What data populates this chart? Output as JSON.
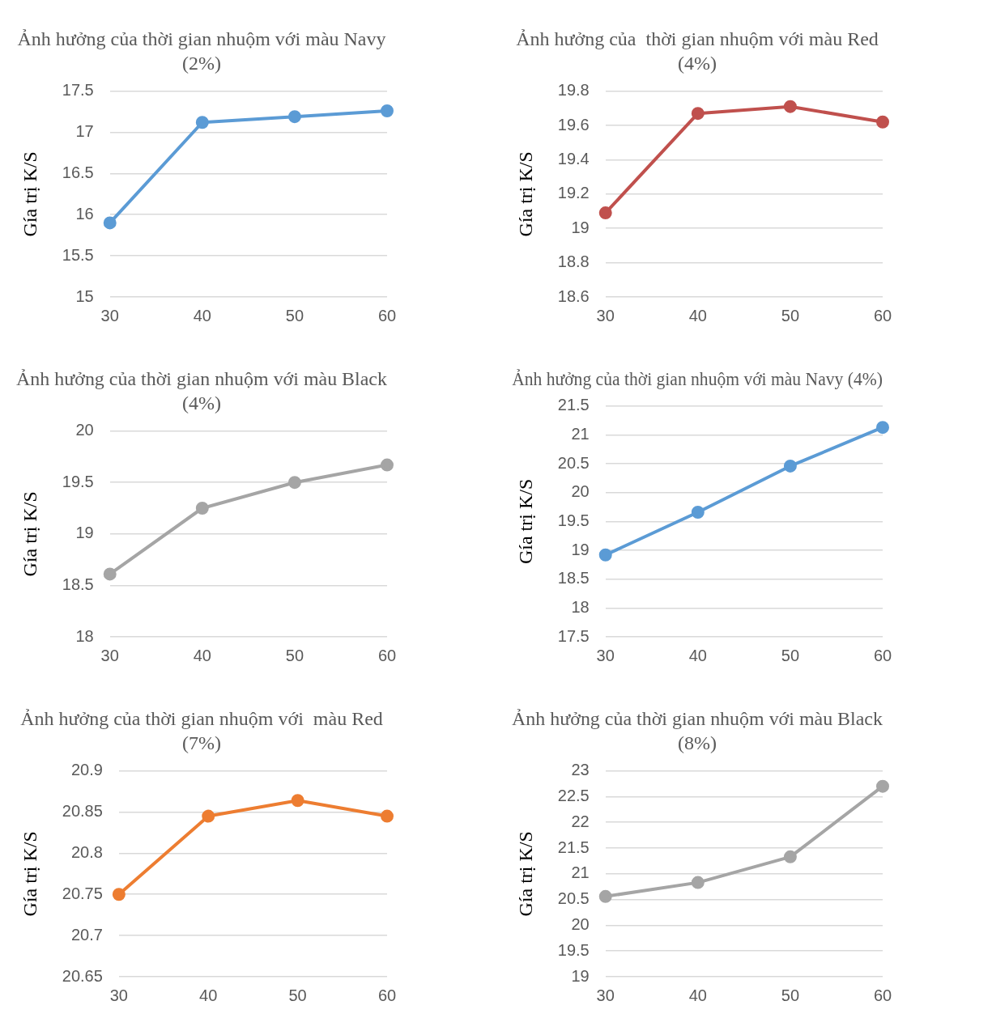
{
  "chart_data": [
    {
      "type": "line",
      "title": "Ảnh hưởng của thời gian nhuộm với màu Navy",
      "subtitle": "(2%)",
      "ylabel": "Gía trị K/S",
      "categories": [
        "30",
        "40",
        "50",
        "60"
      ],
      "series": [
        {
          "color": "#5b9bd5",
          "values": [
            15.9,
            17.12,
            17.19,
            17.26
          ]
        }
      ],
      "ylim": [
        15,
        17.5
      ],
      "yticks": [
        15,
        15.5,
        16,
        16.5,
        17,
        17.5
      ],
      "grid": "y",
      "marker": "circle",
      "legend": false
    },
    {
      "type": "line",
      "title": "Ảnh hưởng của  thời gian nhuộm với màu Red",
      "subtitle": "(4%)",
      "ylabel": "Gía trị K/S",
      "categories": [
        "30",
        "40",
        "50",
        "60"
      ],
      "series": [
        {
          "color": "#c0504d",
          "values": [
            19.09,
            19.67,
            19.71,
            19.62
          ]
        }
      ],
      "ylim": [
        18.6,
        19.8
      ],
      "yticks": [
        18.6,
        18.8,
        19,
        19.2,
        19.4,
        19.6,
        19.8
      ],
      "grid": "y",
      "marker": "circle",
      "legend": false
    },
    {
      "type": "line",
      "title": "Ảnh hưởng của thời gian nhuộm với màu Black",
      "subtitle": "(4%)",
      "ylabel": "Gía trị K/S",
      "categories": [
        "30",
        "40",
        "50",
        "60"
      ],
      "series": [
        {
          "color": "#a5a5a5",
          "values": [
            18.61,
            19.25,
            19.5,
            19.67
          ]
        }
      ],
      "ylim": [
        18,
        20
      ],
      "yticks": [
        18,
        18.5,
        19,
        19.5,
        20
      ],
      "grid": "y",
      "marker": "circle",
      "legend": false
    },
    {
      "type": "line",
      "title": "Ảnh hưởng của thời gian nhuộm với màu Navy (4%)",
      "ylabel": "Gía trị K/S",
      "categories": [
        "30",
        "40",
        "50",
        "60"
      ],
      "series": [
        {
          "color": "#5b9bd5",
          "values": [
            18.92,
            19.66,
            20.46,
            21.13
          ]
        }
      ],
      "ylim": [
        17.5,
        21.5
      ],
      "yticks": [
        17.5,
        18,
        18.5,
        19,
        19.5,
        20,
        20.5,
        21,
        21.5
      ],
      "grid": "y",
      "marker": "circle",
      "legend": false
    },
    {
      "type": "line",
      "title": "Ảnh hưởng của thời gian nhuộm với  màu Red",
      "subtitle": "(7%)",
      "ylabel": "Gía trị K/S",
      "categories": [
        "30",
        "40",
        "50",
        "60"
      ],
      "series": [
        {
          "color": "#ed7d31",
          "values": [
            20.75,
            20.845,
            20.864,
            20.845
          ]
        }
      ],
      "ylim": [
        20.65,
        20.9
      ],
      "yticks": [
        20.65,
        20.7,
        20.75,
        20.8,
        20.85,
        20.9
      ],
      "grid": "y",
      "marker": "circle",
      "legend": false
    },
    {
      "type": "line",
      "title": "Ảnh hưởng của thời gian nhuộm với màu Black",
      "subtitle": "(8%)",
      "ylabel": "Gía trị K/S",
      "categories": [
        "30",
        "40",
        "50",
        "60"
      ],
      "series": [
        {
          "color": "#a5a5a5",
          "values": [
            20.56,
            20.83,
            21.33,
            22.7
          ]
        }
      ],
      "ylim": [
        19,
        23
      ],
      "yticks": [
        19,
        19.5,
        20,
        20.5,
        21,
        21.5,
        22,
        22.5,
        23
      ],
      "grid": "y",
      "marker": "circle",
      "legend": false
    }
  ]
}
